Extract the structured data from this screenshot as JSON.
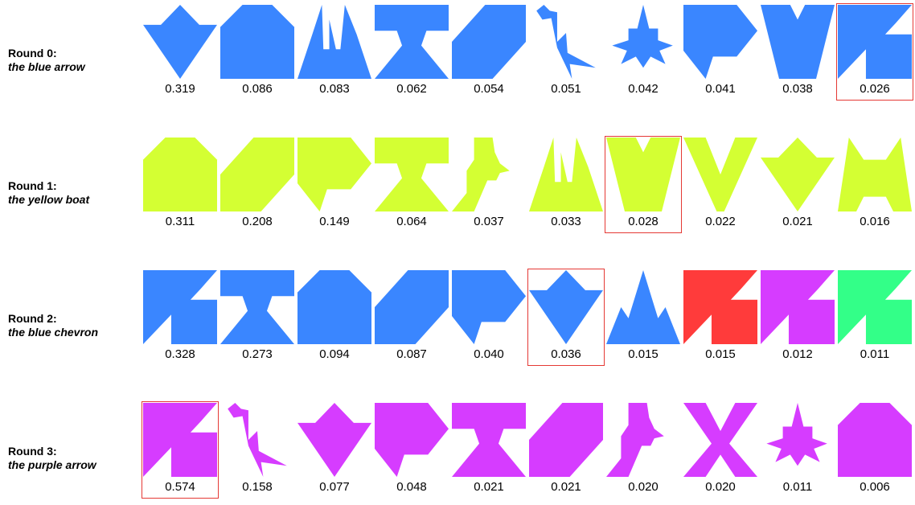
{
  "colors": {
    "blue": "#3a86ff",
    "yellow": "#d4ff33",
    "red": "#ff3b3b",
    "purple": "#d63cff",
    "green": "#33ff88",
    "selection": "#e53935"
  },
  "rounds": [
    {
      "name": "Round 0:",
      "description": "the blue arrow",
      "candidates": [
        {
          "shape": "chevron-arrow",
          "color": "blue",
          "score": "0.319",
          "selected": false
        },
        {
          "shape": "house",
          "color": "blue",
          "score": "0.086",
          "selected": false
        },
        {
          "shape": "castle",
          "color": "blue",
          "score": "0.083",
          "selected": false
        },
        {
          "shape": "hourglass-table",
          "color": "blue",
          "score": "0.062",
          "selected": false
        },
        {
          "shape": "parallelogram",
          "color": "blue",
          "score": "0.054",
          "selected": false
        },
        {
          "shape": "swan",
          "color": "blue",
          "score": "0.051",
          "selected": false
        },
        {
          "shape": "star-figure",
          "color": "blue",
          "score": "0.042",
          "selected": false
        },
        {
          "shape": "pennant",
          "color": "blue",
          "score": "0.041",
          "selected": false
        },
        {
          "shape": "v-cup",
          "color": "blue",
          "score": "0.038",
          "selected": false
        },
        {
          "shape": "notched-arrow",
          "color": "blue",
          "score": "0.026",
          "selected": true
        }
      ]
    },
    {
      "name": "Round 1:",
      "description": "the yellow boat",
      "candidates": [
        {
          "shape": "house",
          "color": "yellow",
          "score": "0.311",
          "selected": false
        },
        {
          "shape": "parallelogram",
          "color": "yellow",
          "score": "0.208",
          "selected": false
        },
        {
          "shape": "pennant",
          "color": "yellow",
          "score": "0.149",
          "selected": false
        },
        {
          "shape": "hourglass-table",
          "color": "yellow",
          "score": "0.064",
          "selected": false
        },
        {
          "shape": "boot",
          "color": "yellow",
          "score": "0.037",
          "selected": false
        },
        {
          "shape": "castle",
          "color": "yellow",
          "score": "0.033",
          "selected": false
        },
        {
          "shape": "v-cup",
          "color": "yellow",
          "score": "0.028",
          "selected": true
        },
        {
          "shape": "open-v",
          "color": "yellow",
          "score": "0.022",
          "selected": false
        },
        {
          "shape": "chevron-arrow",
          "color": "yellow",
          "score": "0.021",
          "selected": false
        },
        {
          "shape": "crown-m",
          "color": "yellow",
          "score": "0.016",
          "selected": false
        }
      ]
    },
    {
      "name": "Round 2:",
      "description": "the blue chevron",
      "candidates": [
        {
          "shape": "notched-arrow",
          "color": "blue",
          "score": "0.328",
          "selected": false
        },
        {
          "shape": "hourglass-table",
          "color": "blue",
          "score": "0.273",
          "selected": false
        },
        {
          "shape": "house",
          "color": "blue",
          "score": "0.094",
          "selected": false
        },
        {
          "shape": "parallelogram",
          "color": "blue",
          "score": "0.087",
          "selected": false
        },
        {
          "shape": "pennant",
          "color": "blue",
          "score": "0.040",
          "selected": false
        },
        {
          "shape": "chevron-arrow",
          "color": "blue",
          "score": "0.036",
          "selected": true
        },
        {
          "shape": "mountains",
          "color": "blue",
          "score": "0.015",
          "selected": false
        },
        {
          "shape": "notched-arrow",
          "color": "red",
          "score": "0.015",
          "selected": false
        },
        {
          "shape": "notched-arrow",
          "color": "purple",
          "score": "0.012",
          "selected": false
        },
        {
          "shape": "notched-arrow",
          "color": "green",
          "score": "0.011",
          "selected": false
        }
      ]
    },
    {
      "name": "Round 3:",
      "description": "the purple arrow",
      "candidates": [
        {
          "shape": "notched-arrow",
          "color": "purple",
          "score": "0.574",
          "selected": true
        },
        {
          "shape": "swan",
          "color": "purple",
          "score": "0.158",
          "selected": false
        },
        {
          "shape": "chevron-arrow",
          "color": "purple",
          "score": "0.077",
          "selected": false
        },
        {
          "shape": "pennant",
          "color": "purple",
          "score": "0.048",
          "selected": false
        },
        {
          "shape": "hourglass-table",
          "color": "purple",
          "score": "0.021",
          "selected": false
        },
        {
          "shape": "parallelogram",
          "color": "purple",
          "score": "0.021",
          "selected": false
        },
        {
          "shape": "boot",
          "color": "purple",
          "score": "0.020",
          "selected": false
        },
        {
          "shape": "bowtie",
          "color": "purple",
          "score": "0.020",
          "selected": false
        },
        {
          "shape": "star-figure",
          "color": "purple",
          "score": "0.011",
          "selected": false
        },
        {
          "shape": "house",
          "color": "purple",
          "score": "0.006",
          "selected": false
        }
      ]
    }
  ]
}
